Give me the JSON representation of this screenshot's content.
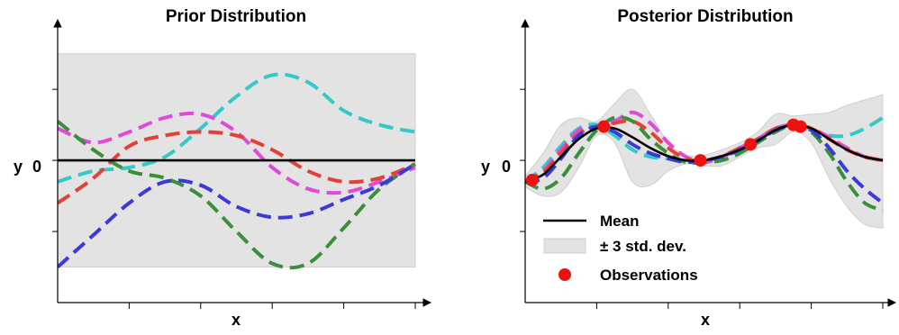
{
  "colors": {
    "band": "#e3e3e3",
    "band_edge": "#cfcfcf",
    "mean": "#000000",
    "observation": "#ee1111",
    "series": [
      "#35c8c8",
      "#e04ad8",
      "#e0423a",
      "#3b8f3b",
      "#3a3ad8"
    ]
  },
  "chart_data": [
    {
      "type": "line",
      "title": "Prior Distribution",
      "xlabel": "x",
      "ylabel": "y",
      "xlim": [
        0,
        1
      ],
      "ylim": [
        -4,
        3.6
      ],
      "yticks": [
        0
      ],
      "ytick_labels": [
        "0"
      ],
      "x_tick_positions": [
        0.2,
        0.4,
        0.6,
        0.8,
        1.0
      ],
      "grid": false,
      "mean": {
        "x": [
          0,
          1
        ],
        "y": [
          0,
          0
        ]
      },
      "band": {
        "lower": -3,
        "upper": 3
      },
      "samples": [
        {
          "x": [
            0,
            0.1,
            0.2,
            0.3,
            0.4,
            0.5,
            0.6,
            0.7,
            0.8,
            0.9,
            1.0
          ],
          "y": [
            -0.6,
            -0.3,
            -0.2,
            0.1,
            0.9,
            1.8,
            2.4,
            2.2,
            1.4,
            1.0,
            0.8
          ]
        },
        {
          "x": [
            0,
            0.1,
            0.2,
            0.3,
            0.4,
            0.5,
            0.6,
            0.7,
            0.8,
            0.9,
            1.0
          ],
          "y": [
            0.9,
            0.5,
            0.8,
            1.2,
            1.3,
            0.8,
            -0.2,
            -0.8,
            -0.9,
            -0.6,
            -0.2
          ]
        },
        {
          "x": [
            0,
            0.1,
            0.2,
            0.3,
            0.4,
            0.5,
            0.6,
            0.7,
            0.8,
            0.9,
            1.0
          ],
          "y": [
            -1.2,
            -0.5,
            0.4,
            0.7,
            0.8,
            0.7,
            0.3,
            -0.3,
            -0.6,
            -0.5,
            -0.1
          ]
        },
        {
          "x": [
            0,
            0.1,
            0.2,
            0.3,
            0.4,
            0.5,
            0.6,
            0.7,
            0.8,
            0.9,
            1.0
          ],
          "y": [
            1.1,
            0.3,
            -0.3,
            -0.5,
            -1.0,
            -2.0,
            -2.9,
            -2.9,
            -1.9,
            -0.8,
            -0.1
          ]
        },
        {
          "x": [
            0,
            0.1,
            0.2,
            0.3,
            0.4,
            0.5,
            0.6,
            0.7,
            0.8,
            0.9,
            1.0
          ],
          "y": [
            -3.0,
            -2.1,
            -1.2,
            -0.6,
            -0.7,
            -1.3,
            -1.6,
            -1.5,
            -1.1,
            -0.7,
            -0.1
          ]
        }
      ]
    },
    {
      "type": "line",
      "title": "Posterior Distribution",
      "xlabel": "x",
      "ylabel": "y",
      "xlim": [
        0,
        1
      ],
      "ylim": [
        -4,
        3.6
      ],
      "yticks": [
        0
      ],
      "ytick_labels": [
        "0"
      ],
      "x_tick_positions": [
        0.2,
        0.4,
        0.6,
        0.8,
        1.0
      ],
      "grid": false,
      "legend": {
        "position": "lower-left",
        "entries": [
          "Mean",
          "± 3 std. dev.",
          "Observations"
        ]
      },
      "observations": {
        "x": [
          0.02,
          0.22,
          0.49,
          0.63,
          0.75,
          0.77
        ],
        "y": [
          -0.55,
          0.95,
          0.0,
          0.45,
          1.0,
          0.95
        ]
      },
      "mean": {
        "x": [
          0,
          0.05,
          0.1,
          0.15,
          0.2,
          0.25,
          0.3,
          0.35,
          0.4,
          0.45,
          0.5,
          0.55,
          0.6,
          0.65,
          0.7,
          0.75,
          0.8,
          0.85,
          0.9,
          0.95,
          1.0
        ],
        "y": [
          -0.6,
          -0.4,
          0.1,
          0.6,
          0.9,
          0.9,
          0.65,
          0.35,
          0.12,
          0.0,
          0.0,
          0.12,
          0.3,
          0.55,
          0.85,
          1.0,
          0.9,
          0.6,
          0.3,
          0.1,
          0.0
        ]
      },
      "band": {
        "x": [
          0,
          0.05,
          0.1,
          0.15,
          0.2,
          0.25,
          0.3,
          0.35,
          0.4,
          0.45,
          0.5,
          0.55,
          0.6,
          0.65,
          0.7,
          0.75,
          0.8,
          0.85,
          0.9,
          0.95,
          1.0
        ],
        "lower": [
          -0.75,
          -1.0,
          -0.9,
          -0.2,
          0.7,
          0.5,
          -0.6,
          -0.7,
          -0.3,
          -0.1,
          -0.15,
          -0.15,
          0.1,
          0.35,
          0.45,
          0.8,
          0.5,
          -0.5,
          -1.3,
          -1.8,
          -1.9
        ],
        "upper": [
          -0.45,
          0.2,
          1.0,
          1.2,
          1.1,
          1.6,
          2.0,
          1.3,
          0.5,
          0.15,
          0.15,
          0.3,
          0.5,
          0.8,
          1.3,
          1.25,
          1.3,
          1.35,
          1.55,
          1.7,
          1.85
        ]
      },
      "samples": [
        {
          "x": [
            0,
            0.05,
            0.1,
            0.15,
            0.2,
            0.25,
            0.3,
            0.35,
            0.4,
            0.45,
            0.5,
            0.55,
            0.6,
            0.65,
            0.7,
            0.75,
            0.8,
            0.85,
            0.9,
            0.95,
            1.0
          ],
          "y": [
            -0.6,
            -0.2,
            0.4,
            0.9,
            1.0,
            0.7,
            0.3,
            0.1,
            0.05,
            0.0,
            0.0,
            0.1,
            0.3,
            0.55,
            0.85,
            1.0,
            0.85,
            0.7,
            0.7,
            0.9,
            1.2
          ]
        },
        {
          "x": [
            0,
            0.05,
            0.1,
            0.15,
            0.2,
            0.25,
            0.3,
            0.35,
            0.4,
            0.45,
            0.5,
            0.55,
            0.6,
            0.65,
            0.7,
            0.75,
            0.8,
            0.85,
            0.9,
            0.95,
            1.0
          ],
          "y": [
            -0.6,
            -0.3,
            0.3,
            0.85,
            0.95,
            1.1,
            1.35,
            1.05,
            0.5,
            0.1,
            -0.05,
            0.1,
            0.35,
            0.6,
            0.9,
            1.0,
            0.9,
            0.65,
            0.35,
            0.1,
            0.0
          ]
        },
        {
          "x": [
            0,
            0.05,
            0.1,
            0.15,
            0.2,
            0.25,
            0.3,
            0.35,
            0.4,
            0.45,
            0.5,
            0.55,
            0.6,
            0.65,
            0.7,
            0.75,
            0.8,
            0.85,
            0.9,
            0.95,
            1.0
          ],
          "y": [
            -0.6,
            -0.35,
            0.2,
            0.75,
            0.95,
            1.05,
            1.1,
            0.8,
            0.35,
            0.05,
            0.0,
            0.12,
            0.35,
            0.6,
            0.9,
            1.0,
            0.9,
            0.6,
            0.3,
            0.1,
            0.0
          ]
        },
        {
          "x": [
            0,
            0.05,
            0.1,
            0.15,
            0.2,
            0.25,
            0.3,
            0.35,
            0.4,
            0.45,
            0.5,
            0.55,
            0.6,
            0.65,
            0.7,
            0.75,
            0.8,
            0.85,
            0.9,
            0.95,
            1.0
          ],
          "y": [
            -0.6,
            -0.8,
            -0.5,
            0.2,
            0.85,
            1.2,
            1.1,
            0.6,
            0.2,
            -0.05,
            -0.05,
            0.0,
            0.2,
            0.5,
            0.8,
            1.0,
            0.8,
            0.2,
            -0.6,
            -1.2,
            -1.4
          ]
        },
        {
          "x": [
            0,
            0.05,
            0.1,
            0.15,
            0.2,
            0.25,
            0.3,
            0.35,
            0.4,
            0.45,
            0.5,
            0.55,
            0.6,
            0.65,
            0.7,
            0.75,
            0.8,
            0.85,
            0.9,
            0.95,
            1.0
          ],
          "y": [
            -0.6,
            -0.5,
            0.05,
            0.7,
            0.95,
            0.8,
            0.45,
            0.2,
            0.05,
            -0.05,
            0.0,
            0.1,
            0.3,
            0.55,
            0.85,
            1.0,
            0.85,
            0.35,
            -0.3,
            -0.8,
            -1.2
          ]
        }
      ]
    }
  ]
}
